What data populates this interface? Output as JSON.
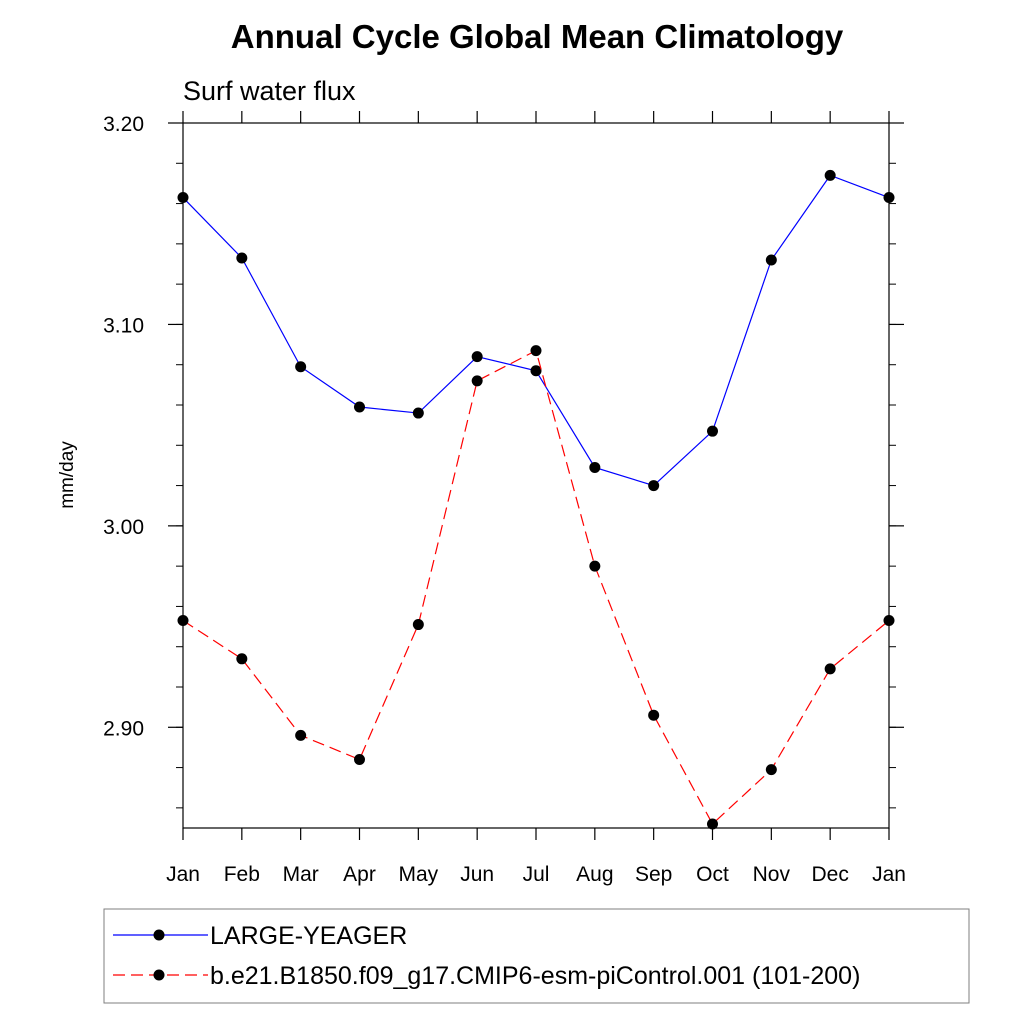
{
  "chart_data": {
    "type": "line",
    "title": "Annual Cycle Global Mean Climatology",
    "subtitle": "Surf water flux",
    "xlabel": "",
    "ylabel": "mm/day",
    "categories": [
      "Jan",
      "Feb",
      "Mar",
      "Apr",
      "May",
      "Jun",
      "Jul",
      "Aug",
      "Sep",
      "Oct",
      "Nov",
      "Dec",
      "Jan"
    ],
    "ylim": [
      2.85,
      3.2
    ],
    "yticks": [
      2.9,
      3.0,
      3.1,
      3.2
    ],
    "ytick_labels": [
      "2.90",
      "3.00",
      "3.10",
      "3.20"
    ],
    "yminor_step": 0.02,
    "grid": false,
    "legend_position": "bottom",
    "series": [
      {
        "name": "LARGE-YEAGER",
        "color": "#0000ff",
        "line_style": "solid",
        "marker": "filled-circle",
        "values": [
          3.163,
          3.133,
          3.079,
          3.059,
          3.056,
          3.084,
          3.077,
          3.029,
          3.02,
          3.047,
          3.132,
          3.174,
          3.163
        ]
      },
      {
        "name": "b.e21.B1850.f09_g17.CMIP6-esm-piControl.001 (101-200)",
        "color": "#ff0000",
        "line_style": "dashed",
        "marker": "filled-circle",
        "values": [
          2.953,
          2.934,
          2.896,
          2.884,
          2.951,
          3.072,
          3.087,
          2.98,
          2.906,
          2.852,
          2.879,
          2.929,
          2.953
        ]
      }
    ]
  }
}
